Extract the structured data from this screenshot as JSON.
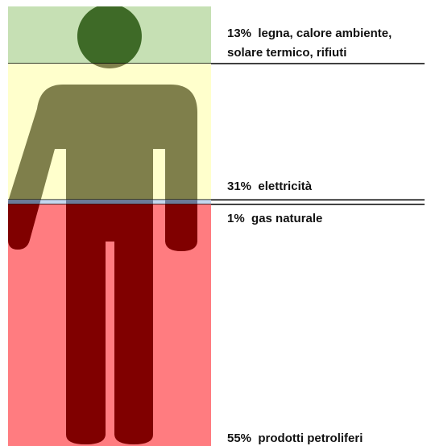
{
  "chart_data": {
    "type": "stacked-figure",
    "categories": [
      "legna, calore ambiente, solare termico, rifiuti",
      "elettricità",
      "gas naturale",
      "prodotti petroliferi"
    ],
    "values": [
      13,
      31,
      1,
      55
    ],
    "value_labels": [
      "13%",
      "31%",
      "1%",
      "55%"
    ],
    "colors": [
      "#c6e0b4",
      "#ffffcc",
      "#c5d9f1",
      "#ff7c80"
    ],
    "figure_colors": [
      "#3e6a27",
      "#7f7f4b",
      "#6b7b99",
      "#800000"
    ]
  }
}
